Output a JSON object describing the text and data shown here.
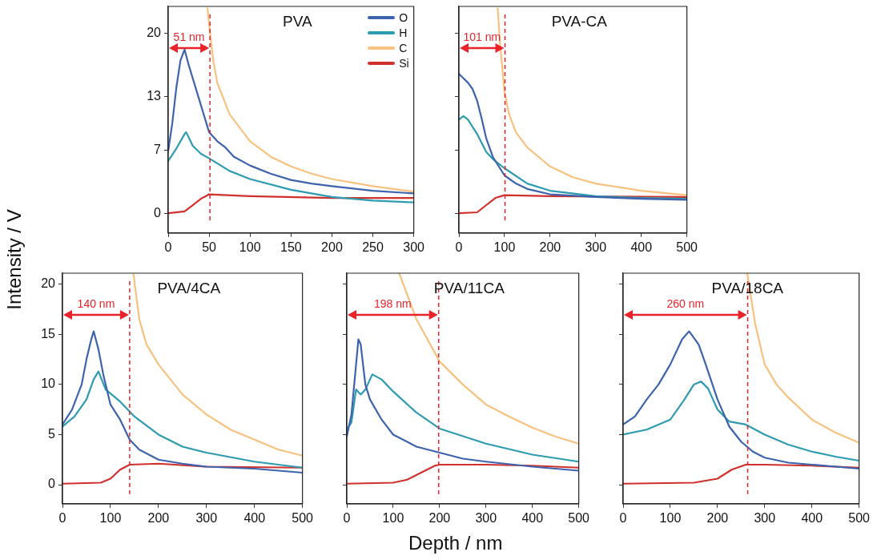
{
  "chart_data": [
    {
      "type": "line",
      "title": "PVA",
      "legend": "top right",
      "grid": false,
      "line_style": "solid",
      "marker": "none",
      "xlim": [
        0,
        300
      ],
      "xticks": [
        0,
        50,
        100,
        150,
        200,
        250,
        300
      ],
      "ylim": [
        -2.2,
        23
      ],
      "yticks": [
        0,
        7,
        13,
        20
      ],
      "ref_lines": [
        {
          "axis": "x",
          "value": 51,
          "color": "#e8232a",
          "line_style": "dashed"
        }
      ],
      "annotations": [
        "51 nm"
      ],
      "series": [
        {
          "name": "O",
          "color": "#3d63ad",
          "x": [
            0,
            5,
            10,
            15,
            20,
            25,
            30,
            40,
            50,
            60,
            70,
            80,
            100,
            125,
            150,
            175,
            200,
            250,
            300
          ],
          "values": [
            6.9,
            10,
            14,
            17,
            18.2,
            16.5,
            15,
            12,
            9,
            8,
            7.3,
            6.3,
            5.3,
            4.4,
            3.7,
            3.3,
            3.0,
            2.5,
            2.2
          ]
        },
        {
          "name": "H",
          "color": "#2e9bb0",
          "x": [
            0,
            10,
            20,
            22,
            30,
            40,
            50,
            75,
            100,
            150,
            200,
            250,
            300
          ],
          "values": [
            5.8,
            7.2,
            8.8,
            9.0,
            7.5,
            6.6,
            6.1,
            4.7,
            3.8,
            2.6,
            1.8,
            1.4,
            1.2
          ]
        },
        {
          "name": "C",
          "color": "#f7c27f",
          "x": [
            48,
            50,
            55,
            60,
            75,
            100,
            125,
            150,
            175,
            200,
            250,
            300
          ],
          "values": [
            22.8,
            21,
            17,
            14.5,
            11,
            8,
            6.3,
            5.2,
            4.4,
            3.8,
            3.0,
            2.4
          ]
        },
        {
          "name": "Si",
          "color": "#d0312d",
          "x": [
            0,
            20,
            30,
            40,
            50,
            100,
            200,
            300
          ],
          "values": [
            0,
            0.2,
            0.9,
            1.6,
            2.1,
            1.9,
            1.7,
            1.7
          ]
        }
      ]
    },
    {
      "type": "line",
      "title": "PVA-CA",
      "grid": false,
      "line_style": "solid",
      "marker": "none",
      "tick_labels": "x",
      "xlim": [
        0,
        500
      ],
      "xticks": [
        0,
        100,
        200,
        300,
        400,
        500
      ],
      "ylim": [
        -2.2,
        23
      ],
      "yticks": [
        0,
        7,
        13,
        20
      ],
      "ref_lines": [
        {
          "axis": "x",
          "value": 101,
          "color": "#e8232a",
          "line_style": "dashed"
        }
      ],
      "annotations": [
        "101 nm"
      ],
      "series": [
        {
          "color": "#3d63ad",
          "x": [
            0,
            10,
            20,
            30,
            40,
            50,
            60,
            75,
            100,
            125,
            150,
            200,
            300,
            400,
            500
          ],
          "values": [
            15.5,
            15,
            14.5,
            13.8,
            12.5,
            10.5,
            8.3,
            6.2,
            4.2,
            3.3,
            2.7,
            2.1,
            1.8,
            1.6,
            1.5
          ]
        },
        {
          "color": "#2e9bb0",
          "x": [
            0,
            10,
            20,
            40,
            60,
            75,
            100,
            150,
            200,
            300,
            400,
            500
          ],
          "values": [
            10.4,
            10.8,
            10.4,
            8.8,
            6.8,
            6.0,
            5.0,
            3.3,
            2.5,
            1.9,
            1.7,
            1.6
          ]
        },
        {
          "color": "#f7c27f",
          "x": [
            85,
            90,
            100,
            110,
            125,
            150,
            200,
            250,
            300,
            400,
            500
          ],
          "values": [
            22.8,
            19,
            13.5,
            11,
            9,
            7.3,
            5.2,
            4.0,
            3.3,
            2.5,
            2.0
          ]
        },
        {
          "color": "#d0312d",
          "x": [
            0,
            40,
            60,
            80,
            100,
            200,
            500
          ],
          "values": [
            0,
            0.1,
            0.9,
            1.7,
            2.0,
            1.9,
            1.8
          ]
        }
      ]
    },
    {
      "type": "line",
      "title": "PVA/4CA",
      "ylabel": "Intensity / V",
      "grid": false,
      "line_style": "solid",
      "marker": "none",
      "xlim": [
        0,
        500
      ],
      "xticks": [
        0,
        100,
        200,
        300,
        400,
        500
      ],
      "ylim": [
        -1.9,
        21.1
      ],
      "yticks": [
        0,
        5,
        10,
        15,
        20
      ],
      "ref_lines": [
        {
          "axis": "x",
          "value": 140,
          "color": "#e8232a",
          "line_style": "dashed"
        }
      ],
      "annotations": [
        "140 nm"
      ],
      "series": [
        {
          "color": "#3d63ad",
          "x": [
            0,
            20,
            40,
            50,
            60,
            65,
            75,
            85,
            100,
            120,
            140,
            160,
            200,
            250,
            300,
            400,
            500
          ],
          "values": [
            6,
            7.5,
            10,
            12.5,
            14.5,
            15.3,
            13.5,
            11,
            8,
            6.5,
            4.5,
            3.5,
            2.5,
            2.1,
            1.8,
            1.6,
            1.2
          ]
        },
        {
          "color": "#2e9bb0",
          "x": [
            0,
            25,
            50,
            65,
            75,
            90,
            120,
            150,
            200,
            250,
            300,
            400,
            500
          ],
          "values": [
            5.8,
            6.8,
            8.5,
            10.5,
            11.3,
            9.5,
            8.3,
            6.8,
            5.0,
            3.8,
            3.2,
            2.3,
            1.7
          ]
        },
        {
          "color": "#f7c27f",
          "x": [
            148,
            160,
            175,
            200,
            250,
            300,
            350,
            400,
            450,
            500
          ],
          "values": [
            21,
            16.5,
            14,
            12,
            9,
            7,
            5.5,
            4.5,
            3.5,
            2.9
          ]
        },
        {
          "color": "#d0312d",
          "x": [
            0,
            80,
            100,
            120,
            140,
            200,
            300,
            500
          ],
          "values": [
            0.1,
            0.2,
            0.6,
            1.5,
            2.0,
            2.1,
            1.8,
            1.7
          ]
        }
      ]
    },
    {
      "type": "line",
      "title": "PVA/11CA",
      "xlabel": "Depth / nm",
      "grid": false,
      "line_style": "solid",
      "marker": "none",
      "tick_labels": "x",
      "xlim": [
        0,
        500
      ],
      "xticks": [
        0,
        100,
        200,
        300,
        400,
        500
      ],
      "ylim": [
        -1.9,
        21.1
      ],
      "yticks": [
        0,
        5,
        10,
        15,
        20
      ],
      "ref_lines": [
        {
          "axis": "x",
          "value": 198,
          "color": "#e8232a",
          "line_style": "dashed"
        }
      ],
      "annotations": [
        "198 nm"
      ],
      "series": [
        {
          "color": "#3d63ad",
          "x": [
            0,
            10,
            20,
            25,
            30,
            35,
            40,
            50,
            75,
            100,
            150,
            200,
            250,
            300,
            400,
            500
          ],
          "values": [
            4.8,
            7,
            12,
            14.5,
            14,
            12,
            10,
            8.5,
            6.5,
            5,
            3.8,
            3.2,
            2.6,
            2.3,
            1.8,
            1.4
          ]
        },
        {
          "color": "#2e9bb0",
          "x": [
            0,
            10,
            20,
            30,
            40,
            55,
            75,
            100,
            150,
            200,
            300,
            400,
            500
          ],
          "values": [
            5.5,
            6.2,
            9.5,
            9.0,
            9.5,
            11,
            10.5,
            9.3,
            7.2,
            5.6,
            4.1,
            3.0,
            2.3
          ]
        },
        {
          "color": "#f7c27f",
          "x": [
            113,
            150,
            200,
            250,
            300,
            350,
            400,
            450,
            500
          ],
          "values": [
            21.1,
            16.5,
            12.3,
            10,
            8,
            6.8,
            5.7,
            4.8,
            4.1
          ]
        },
        {
          "color": "#d0312d",
          "x": [
            0,
            100,
            130,
            160,
            190,
            200,
            300,
            400,
            500
          ],
          "values": [
            0.1,
            0.2,
            0.5,
            1.2,
            1.9,
            2.0,
            2.0,
            1.9,
            1.7
          ]
        }
      ]
    },
    {
      "type": "line",
      "title": "PVA/18CA",
      "grid": false,
      "line_style": "solid",
      "marker": "none",
      "tick_labels": "x",
      "xlim": [
        0,
        500
      ],
      "xticks": [
        0,
        100,
        200,
        300,
        400,
        500
      ],
      "ylim": [
        -1.9,
        21.1
      ],
      "yticks": [
        0,
        5,
        10,
        15,
        20
      ],
      "ref_lines": [
        {
          "axis": "x",
          "value": 264,
          "color": "#e8232a",
          "line_style": "dashed"
        }
      ],
      "annotations": [
        "260 nm"
      ],
      "series": [
        {
          "color": "#3d63ad",
          "x": [
            0,
            25,
            50,
            75,
            100,
            125,
            140,
            160,
            175,
            200,
            225,
            250,
            275,
            300,
            350,
            400,
            500
          ],
          "values": [
            6,
            6.8,
            8.5,
            10,
            12,
            14.5,
            15.3,
            14,
            12,
            8.5,
            5.8,
            4.3,
            3.3,
            2.7,
            2.2,
            2.0,
            1.6
          ]
        },
        {
          "color": "#2e9bb0",
          "x": [
            0,
            50,
            100,
            130,
            150,
            165,
            180,
            200,
            225,
            260,
            300,
            350,
            400,
            450,
            500
          ],
          "values": [
            5.0,
            5.5,
            6.5,
            8.5,
            10,
            10.3,
            9.6,
            7.5,
            6.3,
            6.0,
            5.0,
            4.0,
            3.3,
            2.8,
            2.4
          ]
        },
        {
          "color": "#f7c27f",
          "x": [
            263,
            280,
            300,
            325,
            350,
            400,
            450,
            500
          ],
          "values": [
            21.1,
            16,
            12,
            10,
            8.7,
            6.5,
            5.2,
            4.2
          ]
        },
        {
          "color": "#d0312d",
          "x": [
            0,
            150,
            200,
            230,
            260,
            300,
            400,
            500
          ],
          "values": [
            0.1,
            0.2,
            0.6,
            1.5,
            2.0,
            2.0,
            1.9,
            1.7
          ]
        }
      ]
    }
  ]
}
